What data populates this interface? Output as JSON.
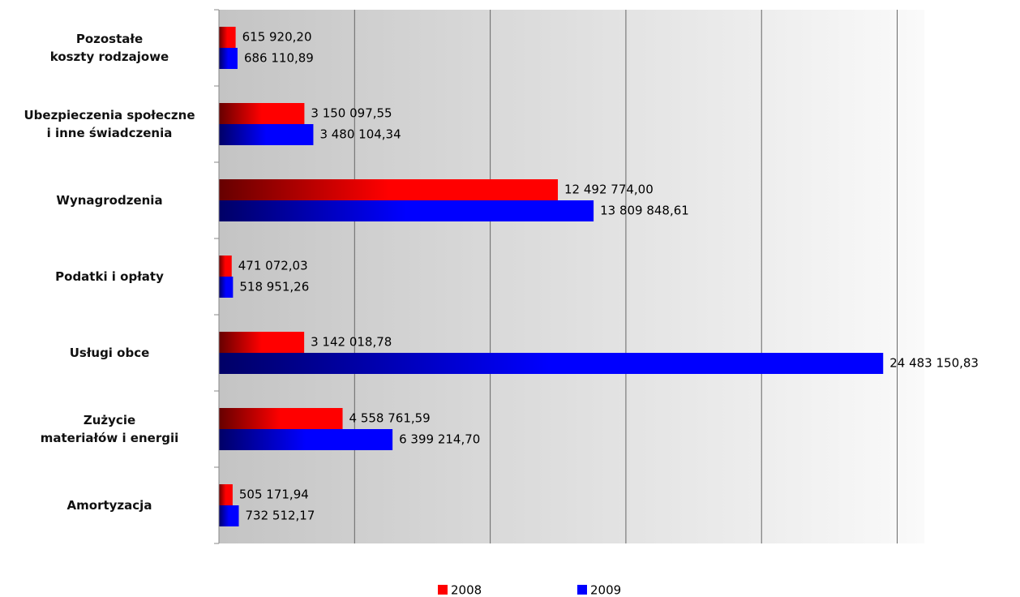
{
  "chart_data": {
    "type": "barh",
    "categories": [
      "Pozostałe\nkoszty rodzajowe",
      "Ubezpieczenia społeczne\ni inne świadczenia",
      "Wynagrodzenia",
      "Podatki i opłaty",
      "Usługi obce",
      "Zużycie\nmateriałów i energii",
      "Amortyzacja"
    ],
    "series": [
      {
        "name": "2008",
        "color": "#ff0000",
        "values": [
          615920.2,
          3150097.55,
          12492774.0,
          471072.03,
          3142018.78,
          4558761.59,
          505171.94
        ],
        "value_labels": [
          "615 920,20",
          "3 150 097,55",
          "12 492 774,00",
          "471 072,03",
          "3 142 018,78",
          "4 558 761,59",
          "505 171,94"
        ]
      },
      {
        "name": "2009",
        "color": "#0000ff",
        "values": [
          686110.89,
          3480104.34,
          13809848.61,
          518951.26,
          24483150.83,
          6399214.7,
          732512.17
        ],
        "value_labels": [
          "686 110,89",
          "3 480 104,34",
          "13 809 848,61",
          "518 951,26",
          "24 483 150,83",
          "6 399 214,70",
          "732 512,17"
        ]
      }
    ],
    "xlim": [
      0,
      26000000
    ],
    "xticks": [
      0,
      5000000,
      10000000,
      15000000,
      20000000,
      25000000
    ],
    "grid": true,
    "legend": "bottom"
  }
}
